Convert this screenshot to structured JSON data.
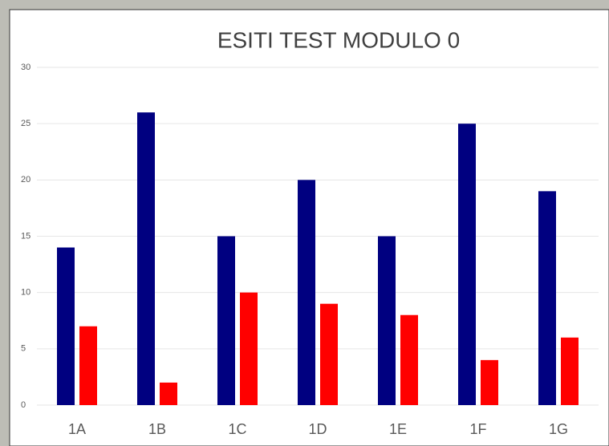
{
  "chart_data": {
    "type": "bar",
    "title": "ESITI TEST MODULO 0",
    "categories": [
      "1A",
      "1B",
      "1C",
      "1D",
      "1E",
      "1F",
      "1G"
    ],
    "series": [
      {
        "color": "#000080",
        "values": [
          14,
          26,
          15,
          20,
          15,
          25,
          19
        ]
      },
      {
        "color": "#ff0000",
        "values": [
          7,
          2,
          10,
          9,
          8,
          4,
          6
        ]
      }
    ],
    "ylim": [
      0,
      30
    ],
    "yticks": [
      0,
      5,
      10,
      15,
      20,
      25,
      30
    ],
    "grid": true
  }
}
